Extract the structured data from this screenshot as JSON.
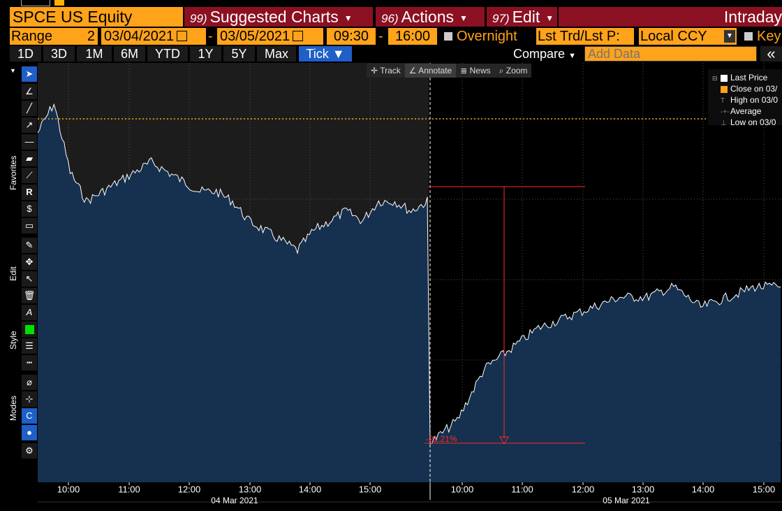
{
  "security": "SPCE US Equity",
  "menus": [
    {
      "num": "99)",
      "label": "Suggested Charts"
    },
    {
      "num": "96)",
      "label": "Actions"
    },
    {
      "num": "97)",
      "label": "Edit"
    }
  ],
  "view_mode": "Intraday",
  "range": {
    "label": "Range",
    "days": "2",
    "start_date": "03/04/2021",
    "end_date": "03/05/2021",
    "start_time": "09:30",
    "end_time": "16:00",
    "overnight_label": "Overnight",
    "field": "Lst Trd/Lst P:",
    "currency": "Local CCY",
    "key_label": "Key"
  },
  "periods": [
    "1D",
    "3D",
    "1M",
    "6M",
    "YTD",
    "1Y",
    "5Y",
    "Max",
    "Tick ▼"
  ],
  "active_period": "Tick ▼",
  "compare_label": "Compare",
  "add_data_placeholder": "Add Data",
  "chart_tools": {
    "track": "Track",
    "annotate": "Annotate",
    "news": "News",
    "zoom": "Zoom"
  },
  "side_labels": {
    "favorites": "Favorites",
    "edit": "Edit",
    "style": "Style",
    "modes": "Modes"
  },
  "legend": {
    "last_price": "Last Price",
    "close": "Close on 03/",
    "high": "High on 03/0",
    "average": "Average",
    "low": "Low on 03/0"
  },
  "annotation_pct": "-21.21%",
  "colors": {
    "accent_orange": "#ffa31a",
    "menu_red": "#8b1022",
    "area_fill": "#16304f",
    "line": "#ffffff",
    "measure": "#ff2a2a",
    "active_blue": "#1e5fc8"
  },
  "chart_data": {
    "type": "area",
    "title": "",
    "xlabel": "",
    "ylabel": "",
    "x_ticks_day1": [
      "10:00",
      "11:00",
      "12:00",
      "13:00",
      "14:00",
      "15:00"
    ],
    "x_ticks_day2": [
      "10:00",
      "11:00",
      "12:00",
      "13:00",
      "14:00",
      "15:00"
    ],
    "day_labels": [
      "04 Mar 2021",
      "05 Mar 2021"
    ],
    "series": [
      {
        "name": "Last Price",
        "relative_change_pct": [
          0,
          3,
          -4,
          -7,
          -6,
          -5,
          -4,
          -3,
          -4,
          -5,
          -6,
          -6,
          -7,
          -9,
          -10,
          -11,
          -12,
          -10,
          -9,
          -8,
          -9,
          -7,
          -7,
          -8,
          -7,
          -21.21,
          -19,
          -14,
          -12,
          -10,
          -9,
          -8,
          -7,
          -7,
          -6,
          -8,
          -7,
          -6,
          -6
        ]
      }
    ],
    "measurement_change_pct": -21.21,
    "grid": true,
    "legend_position": "top-right"
  }
}
